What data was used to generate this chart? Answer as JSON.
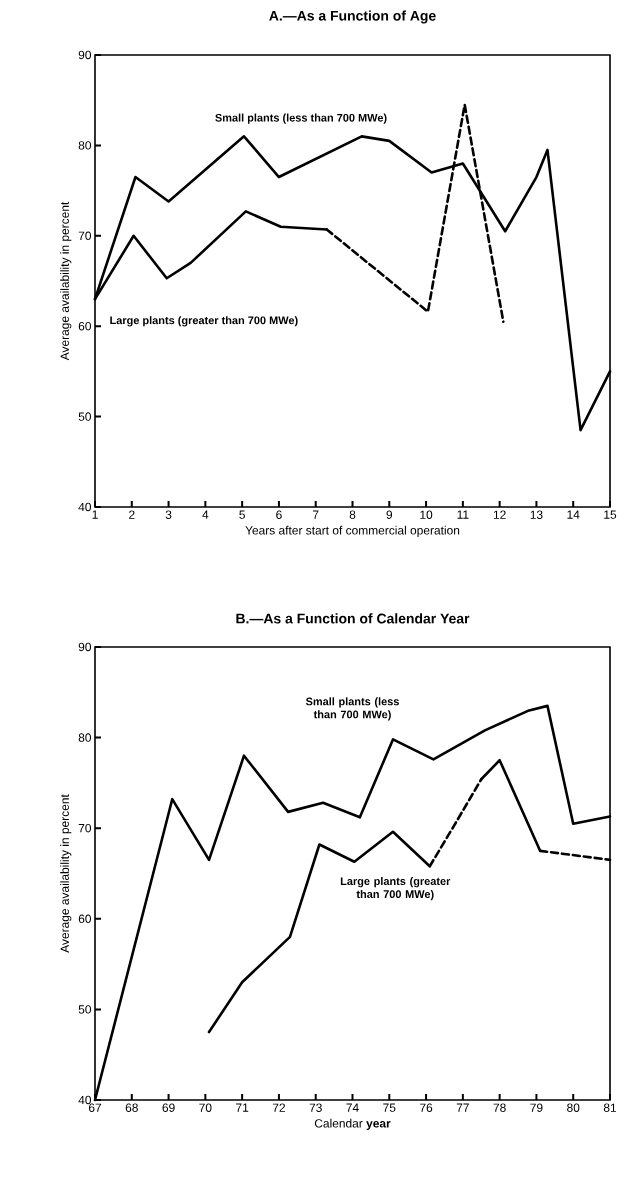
{
  "chart_data": [
    {
      "type": "line",
      "title": "A.—As a Function of Age",
      "xlabel": "Years after start of commercial operation",
      "ylabel": "Average availability in percent",
      "xlim": [
        1,
        15
      ],
      "ylim": [
        40,
        90
      ],
      "xticks": [
        1,
        2,
        3,
        4,
        5,
        6,
        7,
        8,
        9,
        10,
        11,
        12,
        13,
        14,
        15
      ],
      "yticks": [
        40,
        50,
        60,
        70,
        80,
        90
      ],
      "series": [
        {
          "name": "Small plants (less than 700 MWe)",
          "color": "#000000",
          "line_style": "solid",
          "x": [
            1,
            2.1,
            3,
            5.05,
            6,
            8.25,
            9,
            10.15,
            11,
            12.15,
            13,
            13.3,
            14.2,
            15
          ],
          "values": [
            63,
            76.5,
            73.8,
            81,
            76.5,
            81,
            80.5,
            77,
            78,
            70.5,
            76.5,
            79.5,
            48.5,
            55
          ]
        },
        {
          "name": "Large plants (greater than 700 MWe)",
          "color": "#000000",
          "line_style": "solid",
          "x": [
            1,
            2.05,
            2.95,
            3.6,
            5.1,
            6.05,
            7.3
          ],
          "values": [
            63,
            70,
            65.3,
            67,
            72.7,
            71,
            70.7
          ]
        },
        {
          "color": "#000000",
          "line_style": "dashed",
          "x": [
            7.3,
            10.05,
            11.05,
            12.1
          ],
          "values": [
            70.7,
            61.6,
            84.5,
            60.5
          ]
        }
      ]
    },
    {
      "type": "line",
      "title": "B.—As a Function of Calendar Year",
      "xlabel": "Calendar **year**",
      "ylabel": "Average availability in percent",
      "xlim": [
        67,
        81
      ],
      "ylim": [
        40,
        90
      ],
      "xticks": [
        67,
        68,
        69,
        70,
        71,
        72,
        73,
        74,
        75,
        76,
        77,
        78,
        79,
        80,
        81
      ],
      "yticks": [
        40,
        50,
        60,
        70,
        80,
        90
      ],
      "series": [
        {
          "name": "Small plants (less than 700 MWe)",
          "color": "#000000",
          "line_style": "solid",
          "x": [
            67,
            69.1,
            70.1,
            71.05,
            72.25,
            73.2,
            74.2,
            75.1,
            76.2,
            77.6,
            78.8,
            79.3,
            80,
            81
          ],
          "values": [
            40,
            73.2,
            66.5,
            78,
            71.8,
            72.8,
            71.2,
            79.8,
            77.6,
            80.8,
            83,
            83.5,
            70.5,
            71.3
          ]
        },
        {
          "name": "Large plants (greater than 700 MWe)",
          "color": "#000000",
          "line_style": "solid",
          "x": [
            70.1,
            71,
            72.3,
            73.1,
            74.05,
            75.1,
            76.1
          ],
          "values": [
            47.5,
            53,
            58,
            68.2,
            66.3,
            69.6,
            65.8
          ]
        },
        {
          "color": "#000000",
          "line_style": "dashed",
          "x": [
            76.1,
            76.75,
            77.5
          ],
          "values": [
            65.8,
            70.2,
            75.4
          ]
        },
        {
          "color": "#000000",
          "line_style": "solid",
          "x": [
            77.5,
            78,
            79.1
          ],
          "values": [
            75.4,
            77.5,
            67.5
          ]
        },
        {
          "color": "#000000",
          "line_style": "dashed",
          "x": [
            79.1,
            81
          ],
          "values": [
            67.5,
            66.5
          ]
        }
      ]
    }
  ]
}
